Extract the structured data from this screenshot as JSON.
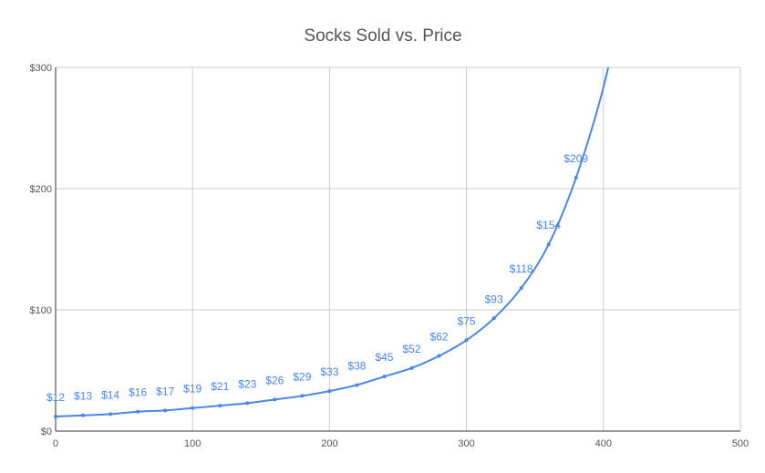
{
  "chart_data": {
    "type": "line",
    "title": "Socks Sold vs. Price",
    "xlabel": "",
    "ylabel": "",
    "xlim": [
      0,
      500
    ],
    "ylim": [
      0,
      300
    ],
    "x_ticks": [
      0,
      100,
      200,
      300,
      400,
      500
    ],
    "y_ticks": [
      0,
      100,
      200,
      300
    ],
    "x_tick_labels": [
      "0",
      "100",
      "200",
      "300",
      "400",
      "500"
    ],
    "y_tick_labels": [
      "$0",
      "$100",
      "$200",
      "$300"
    ],
    "grid": true,
    "legend": "none",
    "colors": {
      "series": "#4a86e8",
      "grid": "#cccccc",
      "axis": "#333333",
      "label": "#4a86e8"
    },
    "series": [
      {
        "x": [
          0,
          20,
          40,
          60,
          80,
          100,
          120,
          140,
          160,
          180,
          200,
          220,
          240,
          260,
          280,
          300,
          320,
          340,
          360,
          380
        ],
        "values": [
          12,
          13,
          14,
          16,
          17,
          19,
          21,
          23,
          26,
          29,
          33,
          38,
          45,
          52,
          62,
          75,
          93,
          118,
          154,
          209
        ],
        "labels": [
          "$12",
          "$13",
          "$14",
          "$16",
          "$17",
          "$19",
          "$21",
          "$23",
          "$26",
          "$29",
          "$33",
          "$38",
          "$45",
          "$52",
          "$62",
          "$75",
          "$93",
          "$118",
          "$154",
          "$209"
        ]
      }
    ]
  }
}
